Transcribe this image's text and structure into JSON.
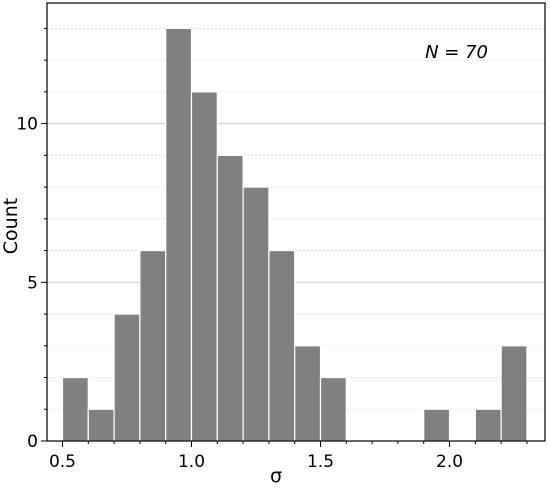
{
  "chart_data": {
    "type": "bar",
    "title": "",
    "xlabel": "σ",
    "ylabel": "Count",
    "annotation": "N = 70",
    "xlim": [
      0.44,
      2.37
    ],
    "ylim": [
      0,
      13.8
    ],
    "bin_width": 0.1,
    "bins": [
      {
        "x0": 0.5,
        "x1": 0.6,
        "count": 2
      },
      {
        "x0": 0.6,
        "x1": 0.7,
        "count": 1
      },
      {
        "x0": 0.7,
        "x1": 0.8,
        "count": 4
      },
      {
        "x0": 0.8,
        "x1": 0.9,
        "count": 6
      },
      {
        "x0": 0.9,
        "x1": 1.0,
        "count": 13
      },
      {
        "x0": 1.0,
        "x1": 1.1,
        "count": 11
      },
      {
        "x0": 1.1,
        "x1": 1.2,
        "count": 9
      },
      {
        "x0": 1.2,
        "x1": 1.3,
        "count": 8
      },
      {
        "x0": 1.3,
        "x1": 1.4,
        "count": 6
      },
      {
        "x0": 1.4,
        "x1": 1.5,
        "count": 3
      },
      {
        "x0": 1.5,
        "x1": 1.6,
        "count": 2
      },
      {
        "x0": 1.9,
        "x1": 2.0,
        "count": 1
      },
      {
        "x0": 2.1,
        "x1": 2.2,
        "count": 1
      },
      {
        "x0": 2.2,
        "x1": 2.3,
        "count": 3
      }
    ],
    "x_ticks": [
      {
        "value": 0.5,
        "label": "0.5"
      },
      {
        "value": 1.0,
        "label": "1.0"
      },
      {
        "value": 1.5,
        "label": "1.5"
      },
      {
        "value": 2.0,
        "label": "2.0"
      }
    ],
    "y_ticks": [
      {
        "value": 0,
        "label": "0"
      },
      {
        "value": 5,
        "label": "5"
      },
      {
        "value": 10,
        "label": "10"
      }
    ],
    "x_minor_step": 0.1,
    "y_minor_step": 1,
    "grid": {
      "major_y": true,
      "minor_y": true
    },
    "colors": {
      "bar_fill": "#808080",
      "bar_edge": "#ffffff",
      "axis": "#000000",
      "major_grid": "#c8c8c8",
      "minor_grid": "#dcdcdc"
    }
  }
}
